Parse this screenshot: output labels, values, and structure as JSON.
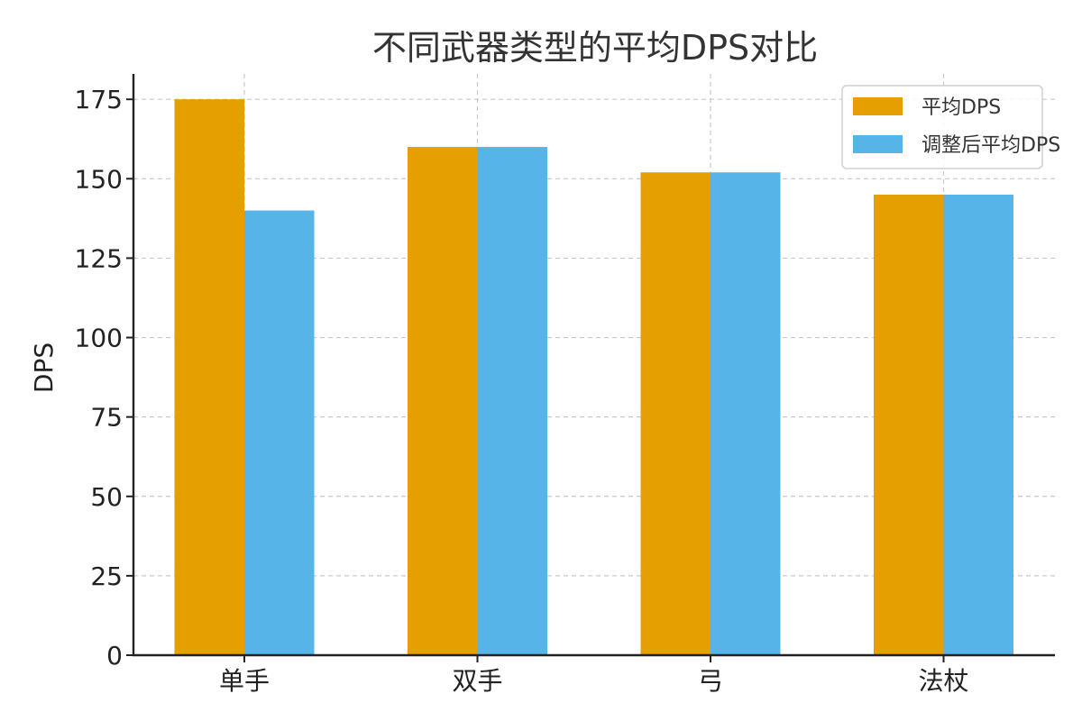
{
  "chart_data": {
    "type": "bar",
    "title": "不同武器类型的平均DPS对比",
    "xlabel": "",
    "ylabel": "DPS",
    "categories": [
      "单手",
      "双手",
      "弓",
      "法杖"
    ],
    "series": [
      {
        "name": "平均DPS",
        "values": [
          175,
          160,
          152,
          145
        ],
        "color": "#E69F00"
      },
      {
        "name": "调整后平均DPS",
        "values": [
          140,
          160,
          152,
          145
        ],
        "color": "#56B4E9"
      }
    ],
    "ylim": [
      0,
      183
    ],
    "yticks": [
      0,
      25,
      50,
      75,
      100,
      125,
      150,
      175
    ],
    "grid": true,
    "legend": "top-right"
  }
}
